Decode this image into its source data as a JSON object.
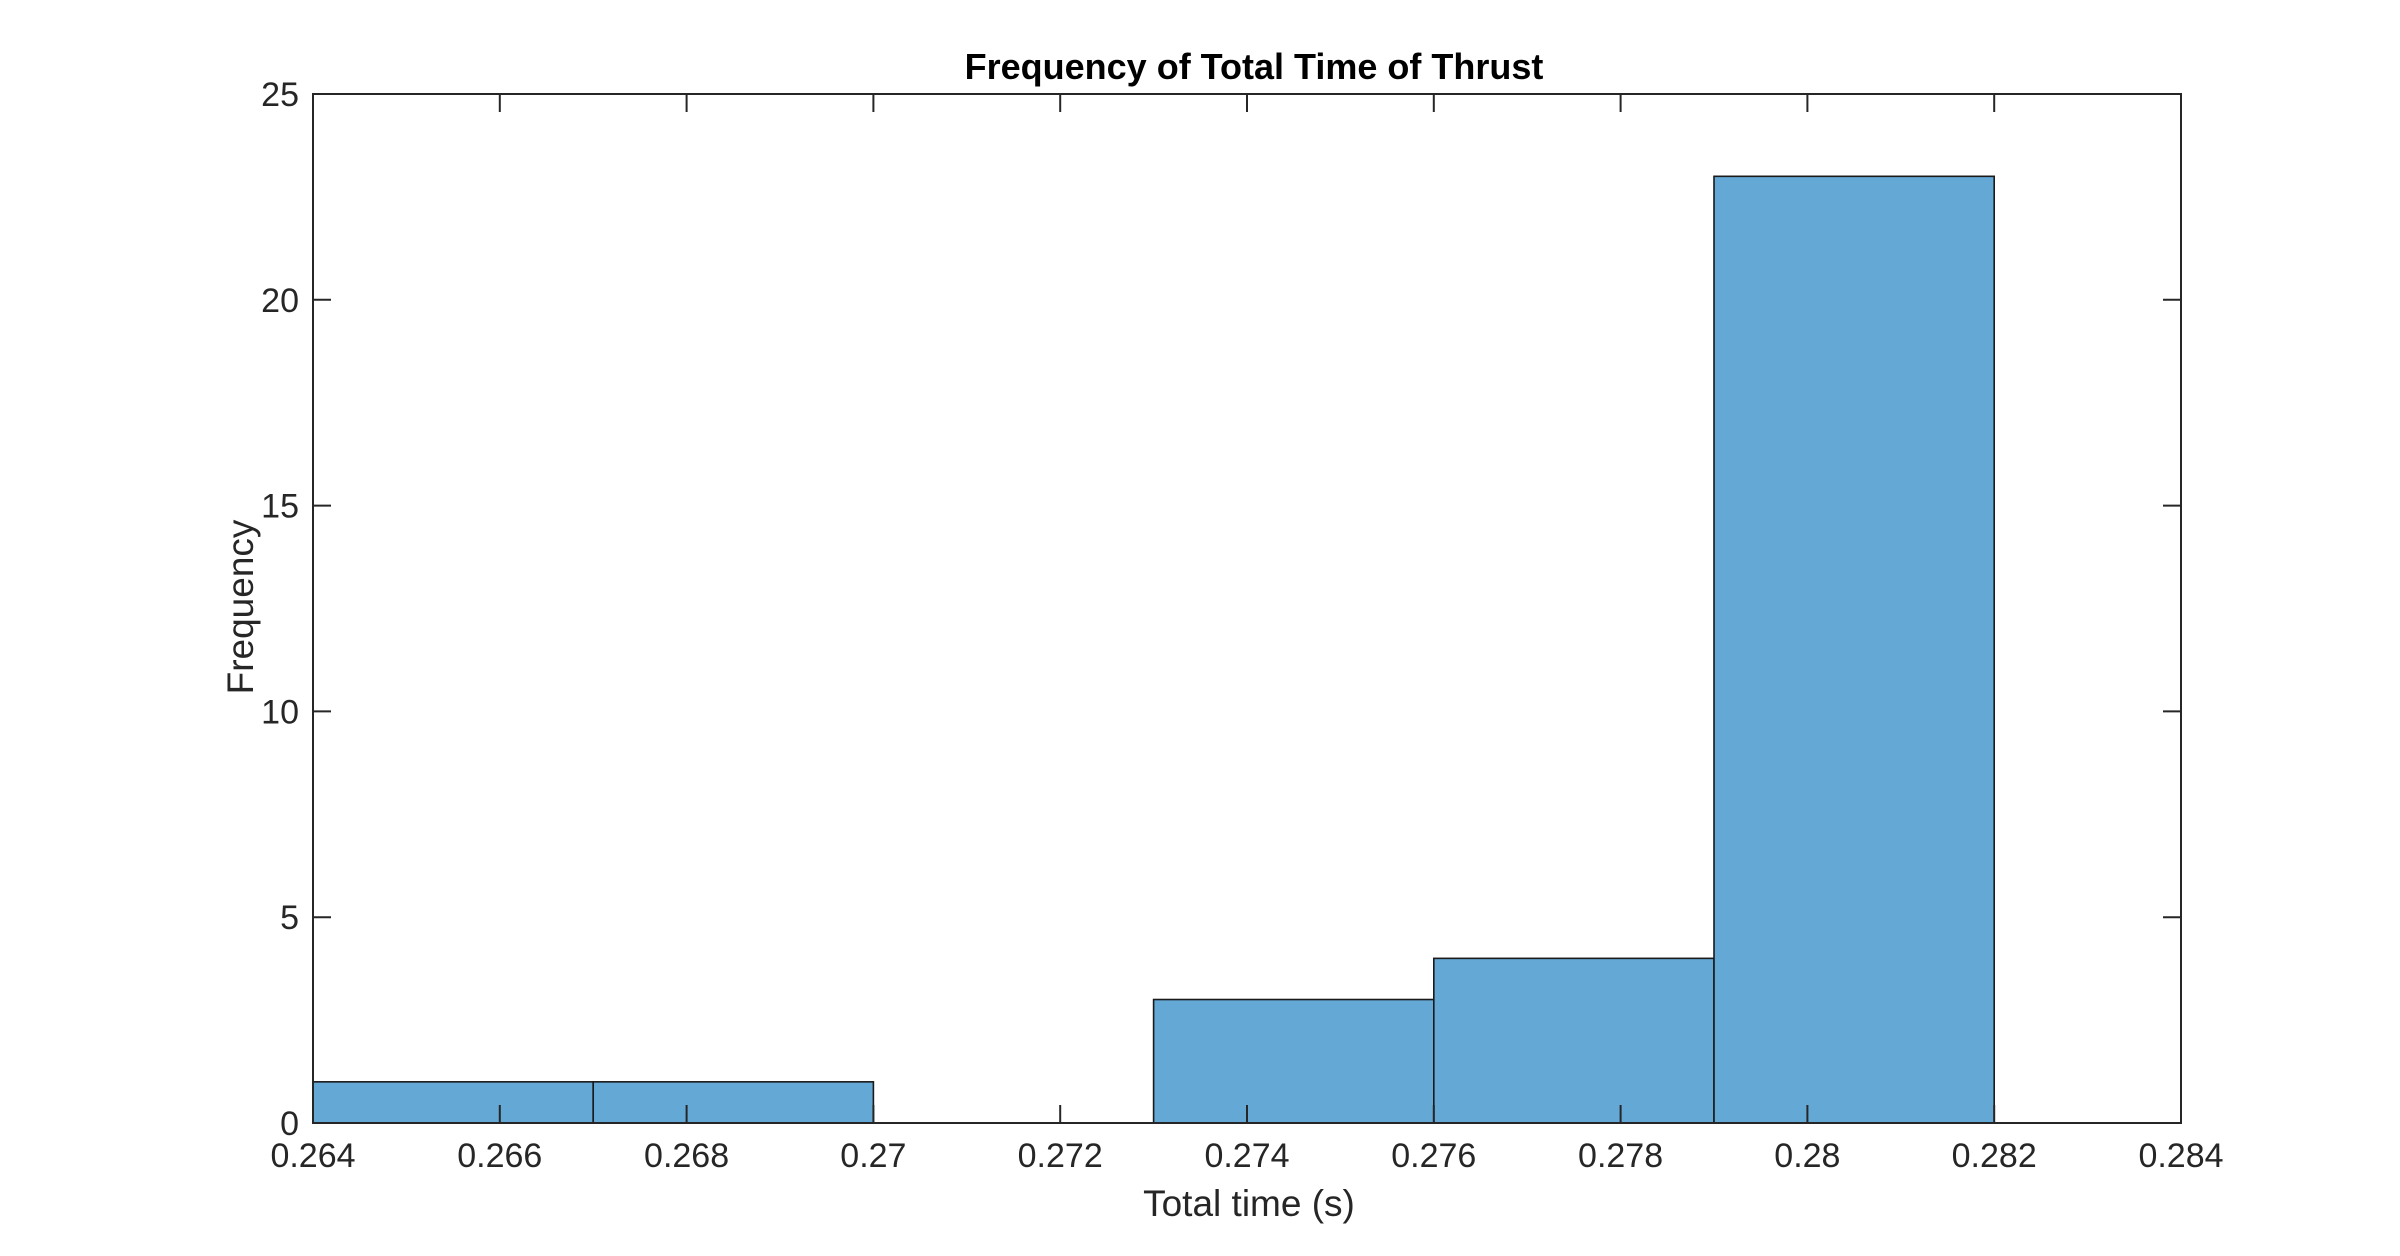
{
  "chart_data": {
    "type": "bar",
    "title": "Frequency of Total Time of Thrust",
    "xlabel": "Total time (s)",
    "ylabel": "Frequency",
    "xlim": [
      0.264,
      0.284
    ],
    "ylim": [
      0,
      25
    ],
    "xticks": [
      0.264,
      0.266,
      0.268,
      0.27,
      0.272,
      0.274,
      0.276,
      0.278,
      0.28,
      0.282,
      0.284
    ],
    "xtick_labels": [
      "0.264",
      "0.266",
      "0.268",
      "0.27",
      "0.272",
      "0.274",
      "0.276",
      "0.278",
      "0.28",
      "0.282",
      "0.284"
    ],
    "yticks": [
      0,
      5,
      10,
      15,
      20,
      25
    ],
    "ytick_labels": [
      "0",
      "5",
      "10",
      "15",
      "20",
      "25"
    ],
    "bin_edges": [
      0.264,
      0.267,
      0.27,
      0.273,
      0.276,
      0.279,
      0.282
    ],
    "values": [
      1,
      1,
      0,
      3,
      4,
      23
    ],
    "grid": false,
    "colors": {
      "bar_fill": "#64a8d6",
      "bar_edge": "#1a1a1a",
      "axes": "#262626"
    }
  }
}
